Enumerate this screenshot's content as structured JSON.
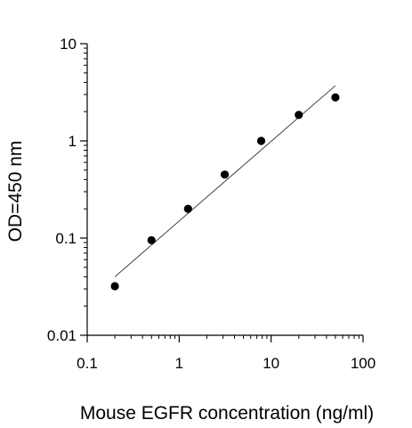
{
  "chart_data": {
    "type": "scatter",
    "title": "",
    "xlabel": "Mouse EGFR concentration (ng/ml)",
    "ylabel": "OD=450 nm",
    "xscale": "log",
    "yscale": "log",
    "xlim": [
      0.1,
      100
    ],
    "ylim": [
      0.01,
      10
    ],
    "grid": false,
    "legend": "none",
    "x_ticks": [
      {
        "value": 0.1,
        "label": "0.1"
      },
      {
        "value": 1,
        "label": "1"
      },
      {
        "value": 10,
        "label": "10"
      },
      {
        "value": 100,
        "label": "100"
      }
    ],
    "y_ticks": [
      {
        "value": 0.01,
        "label": "0.01"
      },
      {
        "value": 0.1,
        "label": "0.1"
      },
      {
        "value": 1,
        "label": "1"
      },
      {
        "value": 10,
        "label": "10"
      }
    ],
    "series": [
      {
        "points": [
          {
            "x": 0.2,
            "y": 0.032
          },
          {
            "x": 0.5,
            "y": 0.095
          },
          {
            "x": 1.25,
            "y": 0.2
          },
          {
            "x": 3.13,
            "y": 0.45
          },
          {
            "x": 7.8,
            "y": 1.0
          },
          {
            "x": 20,
            "y": 1.85
          },
          {
            "x": 50,
            "y": 2.8
          }
        ]
      }
    ],
    "fit_line": {
      "type": "linear-log-log",
      "x_start": 0.2,
      "y_start": 0.04,
      "x_end": 50,
      "y_end": 3.7
    },
    "colors": {
      "points": "#000000",
      "fit_line": "#333333",
      "axes": "#000000"
    }
  }
}
